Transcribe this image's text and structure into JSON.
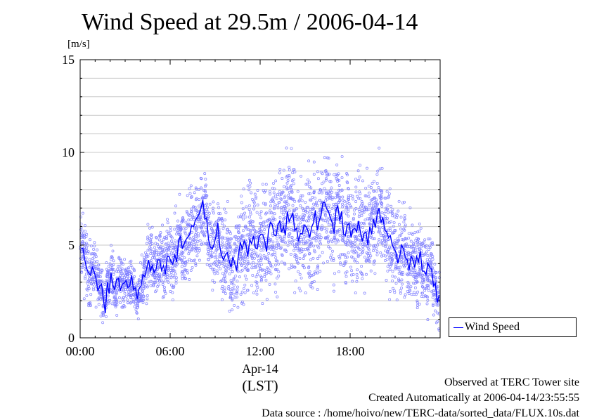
{
  "chart_data": {
    "type": "scatter",
    "title": "Wind Speed at 29.5m / 2006-04-14",
    "ylabel": "[m/s]",
    "ylim": [
      0,
      15
    ],
    "yticks": [
      "0",
      "5",
      "10",
      "15"
    ],
    "xlim": [
      "00:00",
      "24:00"
    ],
    "xticks": [
      "00:00",
      "06:00",
      "12:00",
      "18:00"
    ],
    "xlabel_date": "Apr-14",
    "xlabel_tz": "(LST)",
    "grid": true,
    "legend": {
      "position": "right-bottom",
      "label": "Wind Speed"
    },
    "colors": {
      "scatter": "#8080ff",
      "line": "#0000ff"
    },
    "series": [
      {
        "name": "Wind Speed",
        "x_hours": [
          0.0,
          0.25,
          0.5,
          0.75,
          1.0,
          1.25,
          1.5,
          1.75,
          2.0,
          2.25,
          2.5,
          2.75,
          3.0,
          3.25,
          3.5,
          3.75,
          4.0,
          4.25,
          4.5,
          4.75,
          5.0,
          5.25,
          5.5,
          5.75,
          6.0,
          6.25,
          6.5,
          6.75,
          7.0,
          7.25,
          7.5,
          7.75,
          8.0,
          8.25,
          8.5,
          8.75,
          9.0,
          9.25,
          9.5,
          9.75,
          10.0,
          10.25,
          10.5,
          10.75,
          11.0,
          11.25,
          11.5,
          11.75,
          12.0,
          12.25,
          12.5,
          12.75,
          13.0,
          13.25,
          13.5,
          13.75,
          14.0,
          14.25,
          14.5,
          14.75,
          15.0,
          15.25,
          15.5,
          15.75,
          16.0,
          16.25,
          16.5,
          16.75,
          17.0,
          17.25,
          17.5,
          17.75,
          18.0,
          18.25,
          18.5,
          18.75,
          19.0,
          19.25,
          19.5,
          19.75,
          20.0,
          20.25,
          20.5,
          20.75,
          21.0,
          21.25,
          21.5,
          21.75,
          22.0,
          22.25,
          22.5,
          22.75,
          23.0,
          23.25,
          23.5,
          23.75
        ],
        "mean": [
          4.8,
          4.2,
          3.5,
          3.8,
          3.2,
          2.8,
          2.0,
          3.0,
          3.5,
          2.6,
          3.2,
          2.9,
          3.1,
          2.8,
          2.6,
          2.1,
          2.8,
          3.3,
          4.2,
          3.9,
          3.7,
          4.2,
          3.9,
          4.4,
          4.1,
          4.5,
          5.2,
          4.8,
          5.3,
          5.6,
          6.0,
          6.5,
          7.0,
          6.4,
          5.3,
          4.8,
          5.5,
          4.9,
          4.2,
          4.6,
          3.8,
          4.0,
          4.5,
          4.8,
          5.0,
          5.3,
          5.5,
          4.8,
          5.6,
          5.2,
          5.8,
          6.1,
          5.5,
          6.3,
          6.0,
          6.8,
          6.5,
          5.8,
          5.2,
          5.6,
          6.0,
          5.4,
          6.2,
          5.8,
          6.6,
          7.3,
          6.8,
          6.2,
          6.9,
          6.3,
          5.6,
          6.1,
          5.4,
          5.9,
          6.3,
          5.2,
          5.7,
          6.0,
          6.4,
          6.7,
          6.2,
          5.8,
          5.4,
          5.0,
          4.6,
          4.4,
          4.8,
          4.2,
          4.4,
          3.8,
          4.1,
          3.6,
          3.4,
          3.8,
          2.8,
          1.9
        ],
        "spread": [
          1.2,
          1.3,
          1.2,
          1.0,
          0.9,
          0.9,
          0.8,
          0.9,
          0.9,
          0.8,
          0.8,
          0.8,
          0.8,
          0.8,
          0.7,
          0.7,
          0.9,
          1.1,
          1.2,
          1.3,
          1.2,
          1.3,
          1.3,
          1.3,
          1.4,
          1.4,
          1.4,
          1.5,
          1.5,
          1.6,
          1.6,
          1.7,
          1.7,
          1.6,
          1.6,
          1.6,
          1.7,
          1.7,
          1.6,
          1.7,
          1.7,
          1.8,
          1.8,
          1.9,
          1.9,
          2.0,
          2.0,
          2.0,
          2.0,
          2.0,
          2.0,
          2.0,
          2.0,
          2.0,
          2.0,
          2.0,
          2.0,
          2.0,
          2.0,
          2.0,
          2.1,
          2.1,
          2.1,
          2.1,
          2.1,
          2.1,
          2.1,
          2.0,
          2.0,
          2.0,
          2.0,
          2.0,
          2.0,
          2.0,
          2.0,
          1.9,
          1.9,
          1.9,
          1.9,
          1.9,
          1.8,
          1.8,
          1.8,
          1.7,
          1.6,
          1.6,
          1.5,
          1.5,
          1.4,
          1.4,
          1.3,
          1.3,
          1.2,
          1.1,
          1.0,
          0.9
        ]
      }
    ]
  },
  "footer": {
    "line1": "Observed at TERC Tower site",
    "line2": "Created Automatically at 2006-04-14/23:55:55",
    "line3": "Data source : /home/hoivo/new/TERC-data/sorted_data/FLUX.10s.dat"
  }
}
